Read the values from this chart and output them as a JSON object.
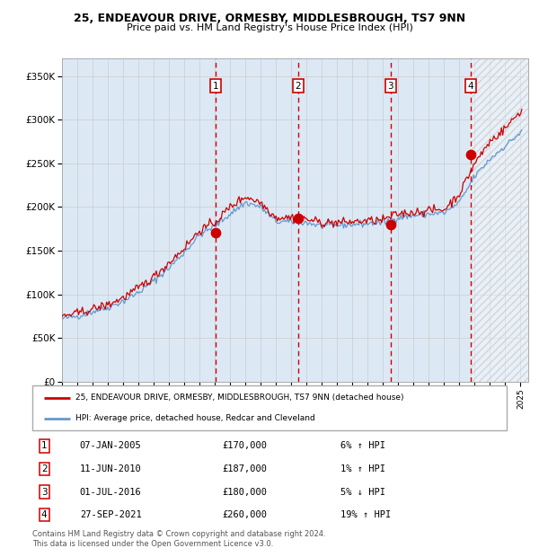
{
  "title1": "25, ENDEAVOUR DRIVE, ORMESBY, MIDDLESBROUGH, TS7 9NN",
  "title2": "Price paid vs. HM Land Registry's House Price Index (HPI)",
  "xmin": 1995.0,
  "xmax": 2025.5,
  "ymin": 0,
  "ymax": 370000,
  "yticks": [
    0,
    50000,
    100000,
    150000,
    200000,
    250000,
    300000,
    350000
  ],
  "ytick_labels": [
    "£0",
    "£50K",
    "£100K",
    "£150K",
    "£200K",
    "£250K",
    "£300K",
    "£350K"
  ],
  "background_color": "#ffffff",
  "plot_bg_color": "#dce9f5",
  "hatch_region_start": 2021.75,
  "sale_dates_num": [
    2005.03,
    2010.44,
    2016.5,
    2021.75
  ],
  "sale_prices": [
    170000,
    187000,
    180000,
    260000
  ],
  "sale_labels": [
    "1",
    "2",
    "3",
    "4"
  ],
  "legend_red_label": "25, ENDEAVOUR DRIVE, ORMESBY, MIDDLESBROUGH, TS7 9NN (detached house)",
  "legend_blue_label": "HPI: Average price, detached house, Redcar and Cleveland",
  "table_rows": [
    [
      "1",
      "07-JAN-2005",
      "£170,000",
      "6% ↑ HPI"
    ],
    [
      "2",
      "11-JUN-2010",
      "£187,000",
      "1% ↑ HPI"
    ],
    [
      "3",
      "01-JUL-2016",
      "£180,000",
      "5% ↓ HPI"
    ],
    [
      "4",
      "27-SEP-2021",
      "£260,000",
      "19% ↑ HPI"
    ]
  ],
  "footer": "Contains HM Land Registry data © Crown copyright and database right 2024.\nThis data is licensed under the Open Government Licence v3.0.",
  "red_color": "#cc0000",
  "blue_color": "#6699cc",
  "grid_color": "#cccccc",
  "label_color": "#333333"
}
